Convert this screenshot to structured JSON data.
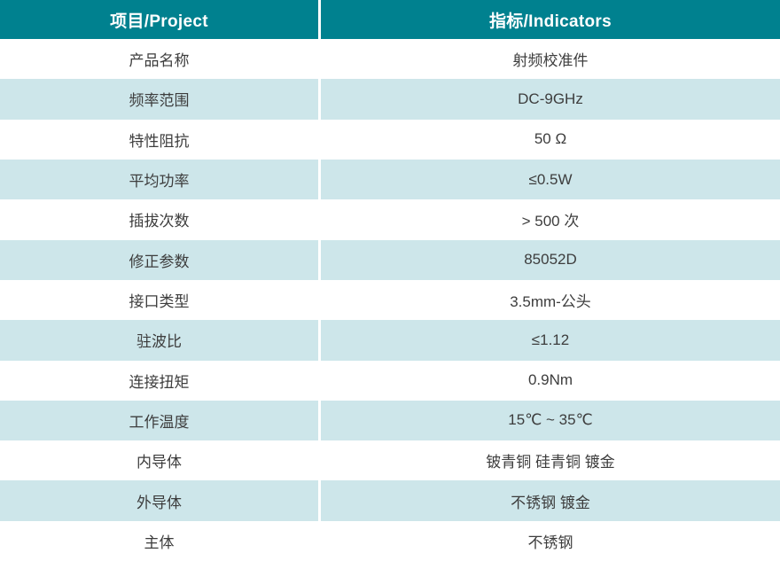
{
  "table": {
    "header": {
      "project": "项目/Project",
      "indicators": "指标/Indicators"
    },
    "rows": [
      {
        "label": "产品名称",
        "value": "射频校准件"
      },
      {
        "label": "频率范围",
        "value": "DC-9GHz"
      },
      {
        "label": "特性阻抗",
        "value": "50 Ω"
      },
      {
        "label": "平均功率",
        "value": "≤0.5W"
      },
      {
        "label": "插拔次数",
        "value": "> 500 次"
      },
      {
        "label": "修正参数",
        "value": "85052D"
      },
      {
        "label": "接口类型",
        "value": "3.5mm-公头"
      },
      {
        "label": "驻波比",
        "value": "≤1.12"
      },
      {
        "label": "连接扭矩",
        "value": "0.9Nm"
      },
      {
        "label": "工作温度",
        "value": "15℃ ~ 35℃"
      },
      {
        "label": "内导体",
        "value": "铍青铜 硅青铜 镀金"
      },
      {
        "label": "外导体",
        "value": "不锈钢 镀金"
      },
      {
        "label": "主体",
        "value": "不锈钢"
      }
    ],
    "colors": {
      "header_bg": "#00818f",
      "alt_row_bg": "#cde6ea",
      "header_text": "#ffffff",
      "body_text": "#3d3d3d"
    }
  }
}
